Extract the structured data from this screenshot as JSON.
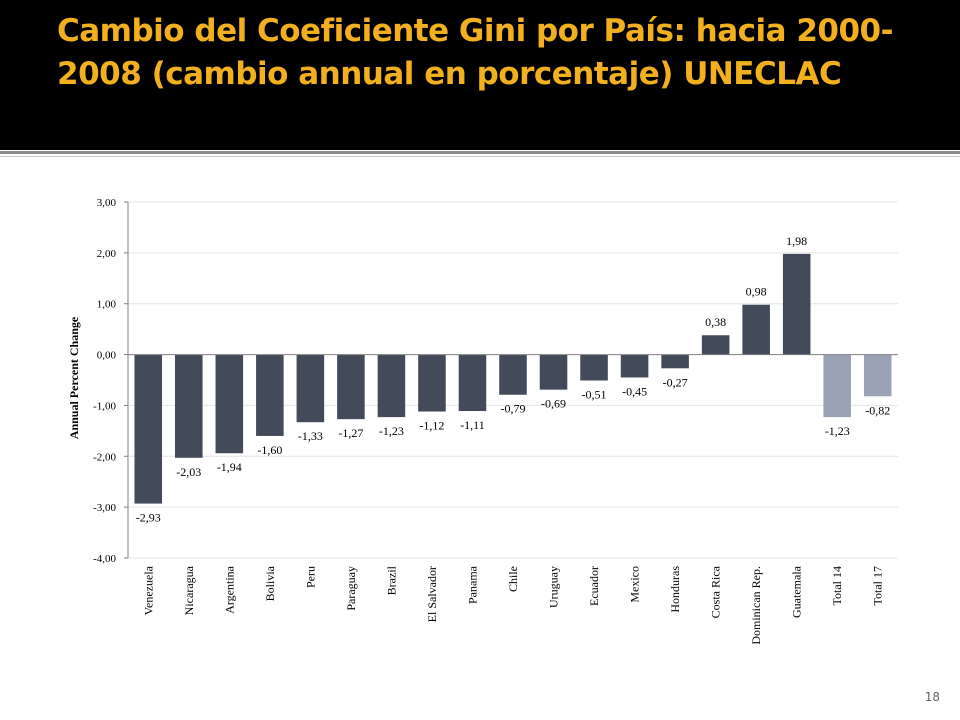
{
  "slide": {
    "title": "Cambio del Coeficiente Gini por País: hacia 2000-2008 (cambio annual en porcentaje) UNECLAC",
    "page_number": "18"
  },
  "colors": {
    "title_band": "#000000",
    "title_text": "#f2b01e",
    "bar_country": "#434a59",
    "bar_total": "#9aa3b5"
  },
  "chart_data": {
    "type": "bar",
    "title": "",
    "xlabel": "",
    "ylabel": "Annual Percent Change",
    "ylim": [
      -4,
      3
    ],
    "yticks": [
      3,
      2,
      1,
      0,
      -1,
      -2,
      -3,
      -4
    ],
    "ytick_labels": [
      "3,00",
      "2,00",
      "1,00",
      "0,00",
      "-1,00",
      "-2,00",
      "-3,00",
      "-4,00"
    ],
    "grid": true,
    "legend": "none",
    "categories": [
      "Venezuela",
      "Nicaragua",
      "Argentina",
      "Bolivia",
      "Peru",
      "Paraguay",
      "Brazil",
      "El Salvador",
      "Panama",
      "Chile",
      "Uruguay",
      "Ecuador",
      "Mexico",
      "Honduras",
      "Costa Rica",
      "Dominican Rep.",
      "Guatemala",
      "Total 14",
      "Total 17"
    ],
    "values": [
      -2.93,
      -2.03,
      -1.94,
      -1.6,
      -1.33,
      -1.27,
      -1.23,
      -1.12,
      -1.11,
      -0.79,
      -0.69,
      -0.51,
      -0.45,
      -0.27,
      0.38,
      0.98,
      1.98,
      -1.23,
      -0.82
    ],
    "data_labels": [
      "-2,93",
      "-2,03",
      "-1,94",
      "-1,60",
      "-1,33",
      "-1,27",
      "-1,23",
      "-1,12",
      "-1,11",
      "-0,79",
      "-0,69",
      "-0,51",
      "-0,45",
      "-0,27",
      "0,38",
      "0,98",
      "1,98",
      "-1,23",
      "-0,82"
    ],
    "bar_kind": [
      "country",
      "country",
      "country",
      "country",
      "country",
      "country",
      "country",
      "country",
      "country",
      "country",
      "country",
      "country",
      "country",
      "country",
      "country",
      "country",
      "country",
      "total",
      "total"
    ]
  }
}
